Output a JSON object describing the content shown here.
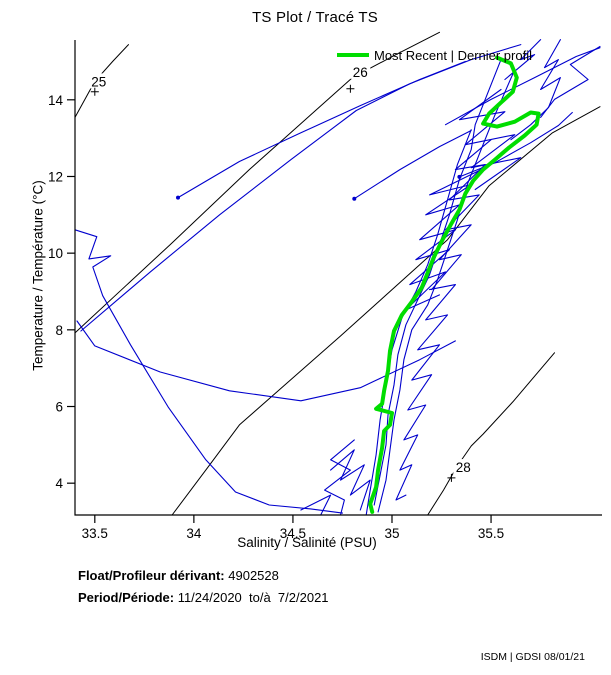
{
  "title": "TS Plot / Tracé TS",
  "legend": {
    "label": "Most Recent | Dernier profil"
  },
  "footer": {
    "float_label": "Float/Profileur dérivant:",
    "float_value": " 4902528",
    "period_label": "Period/Période:",
    "period_value": " 11/24/2020  to/à  7/2/2021"
  },
  "watermark": "ISDM | GDSI 08/01/21",
  "chart_data": {
    "type": "line",
    "title": "TS Plot / Tracé TS",
    "xlabel": "Salinity / Salinité (PSU)",
    "ylabel": "Temperature / Température (°C)",
    "xlim": [
      33.4,
      36.06
    ],
    "ylim": [
      3.17,
      15.56
    ],
    "x_ticks": [
      33.5,
      34,
      34.5,
      35,
      35.5
    ],
    "y_ticks": [
      4,
      6,
      8,
      10,
      12,
      14
    ],
    "grid": false,
    "legend_position": "top-right",
    "colors": {
      "profiles": "#0000cd",
      "most_recent": "#00dd00",
      "contours": "#000000",
      "axis": "#000000"
    },
    "density_contours": [
      {
        "label": "25",
        "label_pos": [
          33.52,
          14.48
        ],
        "marker_pos": [
          33.5,
          14.21
        ],
        "points": [
          [
            33.4,
            13.54
          ],
          [
            33.5,
            14.48
          ],
          [
            33.59,
            15.0
          ],
          [
            33.67,
            15.44
          ]
        ]
      },
      {
        "label": "26",
        "label_pos": [
          34.84,
          14.73
        ],
        "marker_pos": [
          34.79,
          14.29
        ],
        "points": [
          [
            33.4,
            7.92
          ],
          [
            33.88,
            10.22
          ],
          [
            34.28,
            12.18
          ],
          [
            34.59,
            13.61
          ],
          [
            34.8,
            14.58
          ],
          [
            35.02,
            15.18
          ],
          [
            35.24,
            15.76
          ]
        ]
      },
      {
        "label": "",
        "label_pos": null,
        "marker_pos": null,
        "points": [
          [
            33.89,
            3.17
          ],
          [
            34.06,
            4.34
          ],
          [
            34.23,
            5.52
          ],
          [
            34.74,
            7.84
          ],
          [
            35.28,
            10.35
          ],
          [
            35.49,
            11.76
          ],
          [
            35.81,
            13.14
          ],
          [
            36.05,
            13.82
          ]
        ]
      },
      {
        "label": "28",
        "label_pos": [
          35.36,
          4.42
        ],
        "marker_pos": [
          35.3,
          4.14
        ],
        "points": [
          [
            35.18,
            3.17
          ],
          [
            35.26,
            3.82
          ],
          [
            35.33,
            4.45
          ],
          [
            35.4,
            4.97
          ],
          [
            35.46,
            5.28
          ],
          [
            35.61,
            6.12
          ],
          [
            35.82,
            7.4
          ]
        ]
      }
    ],
    "profiles": [
      [
        [
          33.4,
          10.61
        ],
        [
          33.51,
          10.43
        ],
        [
          33.47,
          9.85
        ],
        [
          33.58,
          9.93
        ],
        [
          33.49,
          9.64
        ],
        [
          33.54,
          8.89
        ],
        [
          33.68,
          7.61
        ],
        [
          33.87,
          5.99
        ],
        [
          34.06,
          4.61
        ],
        [
          34.21,
          3.77
        ],
        [
          34.38,
          3.43
        ],
        [
          34.59,
          3.33
        ],
        [
          34.75,
          3.22
        ]
      ],
      [
        [
          33.43,
          7.97
        ],
        [
          33.78,
          9.51
        ],
        [
          34.13,
          11.0
        ],
        [
          34.49,
          12.44
        ],
        [
          34.82,
          13.72
        ],
        [
          35.09,
          14.42
        ],
        [
          35.4,
          15.05
        ],
        [
          35.65,
          15.44
        ]
      ],
      [
        [
          33.41,
          8.23
        ],
        [
          33.5,
          7.58
        ],
        [
          33.83,
          6.9
        ],
        [
          34.18,
          6.41
        ],
        [
          34.54,
          6.15
        ],
        [
          34.84,
          6.49
        ],
        [
          35.14,
          7.22
        ],
        [
          35.32,
          7.71
        ]
      ],
      [
        [
          33.92,
          11.45
        ],
        [
          34.23,
          12.39
        ],
        [
          34.54,
          13.14
        ],
        [
          34.84,
          13.85
        ],
        [
          35.14,
          14.53
        ],
        [
          35.37,
          15.0
        ]
      ],
      [
        [
          34.81,
          11.42
        ],
        [
          35.04,
          12.18
        ],
        [
          35.24,
          12.78
        ],
        [
          35.4,
          13.2
        ]
      ],
      [
        [
          35.34,
          11.99
        ],
        [
          35.52,
          12.36
        ],
        [
          35.7,
          12.88
        ],
        [
          35.84,
          13.33
        ],
        [
          35.91,
          13.67
        ]
      ],
      [
        [
          35.85,
          15.57
        ],
        [
          35.77,
          14.84
        ],
        [
          35.84,
          15.05
        ],
        [
          35.75,
          14.27
        ],
        [
          35.85,
          14.58
        ],
        [
          35.79,
          13.8
        ],
        [
          35.7,
          13.35
        ],
        [
          35.6,
          12.96
        ]
      ],
      [
        [
          36.05,
          15.39
        ],
        [
          35.9,
          14.92
        ],
        [
          35.99,
          14.53
        ],
        [
          35.82,
          14.01
        ],
        [
          35.75,
          13.54
        ]
      ],
      [
        [
          35.55,
          14.27
        ],
        [
          35.34,
          13.48
        ],
        [
          35.57,
          13.69
        ],
        [
          35.37,
          12.83
        ],
        [
          35.62,
          13.09
        ],
        [
          35.4,
          12.23
        ],
        [
          35.65,
          12.49
        ],
        [
          35.42,
          11.66
        ]
      ],
      [
        [
          35.27,
          13.35
        ],
        [
          35.5,
          14.01
        ],
        [
          35.72,
          14.58
        ],
        [
          35.93,
          15.13
        ],
        [
          36.05,
          15.36
        ]
      ],
      [
        [
          35.45,
          12.18
        ],
        [
          35.19,
          11.52
        ],
        [
          35.4,
          11.79
        ],
        [
          35.17,
          11.0
        ],
        [
          35.34,
          11.26
        ],
        [
          35.14,
          10.35
        ],
        [
          35.32,
          10.61
        ]
      ],
      [
        [
          35.32,
          10.61
        ],
        [
          35.12,
          9.83
        ],
        [
          35.29,
          10.09
        ],
        [
          35.09,
          9.18
        ],
        [
          35.27,
          9.51
        ],
        [
          35.07,
          8.52
        ],
        [
          35.24,
          8.91
        ]
      ],
      [
        [
          34.69,
          4.34
        ],
        [
          34.81,
          4.87
        ],
        [
          34.74,
          4.08
        ],
        [
          34.86,
          4.48
        ],
        [
          34.79,
          3.69
        ],
        [
          34.89,
          4.08
        ],
        [
          34.84,
          3.3
        ]
      ],
      [
        [
          34.54,
          3.3
        ],
        [
          34.69,
          3.69
        ],
        [
          34.64,
          3.17
        ]
      ],
      [
        [
          35.55,
          15.05
        ],
        [
          35.42,
          13.35
        ],
        [
          35.4,
          12.7
        ],
        [
          35.34,
          11.92
        ],
        [
          35.29,
          11.0
        ],
        [
          35.24,
          10.22
        ],
        [
          35.19,
          9.44
        ],
        [
          35.13,
          8.78
        ],
        [
          35.07,
          8.13
        ],
        [
          35.03,
          7.35
        ],
        [
          35.01,
          6.56
        ],
        [
          34.98,
          5.78
        ],
        [
          34.97,
          5.0
        ],
        [
          34.94,
          4.21
        ],
        [
          34.91,
          3.43
        ]
      ],
      [
        [
          35.62,
          14.79
        ],
        [
          35.52,
          13.61
        ],
        [
          35.45,
          12.7
        ],
        [
          35.38,
          11.79
        ],
        [
          35.33,
          10.87
        ],
        [
          35.28,
          10.09
        ],
        [
          35.23,
          9.31
        ],
        [
          35.18,
          8.65
        ],
        [
          35.1,
          8.0
        ],
        [
          35.06,
          7.22
        ],
        [
          35.04,
          6.43
        ],
        [
          35.01,
          5.65
        ],
        [
          34.99,
          4.87
        ],
        [
          34.97,
          4.08
        ],
        [
          34.93,
          3.25
        ]
      ],
      [
        [
          35.4,
          13.22
        ],
        [
          35.33,
          12.31
        ],
        [
          35.28,
          11.39
        ],
        [
          35.23,
          10.48
        ],
        [
          35.18,
          9.7
        ],
        [
          35.12,
          8.99
        ],
        [
          35.05,
          8.31
        ],
        [
          35.0,
          7.48
        ],
        [
          34.97,
          6.56
        ],
        [
          34.94,
          5.65
        ],
        [
          34.92,
          4.74
        ],
        [
          34.89,
          3.82
        ],
        [
          34.87,
          3.17
        ]
      ],
      [
        [
          35.5,
          12.96
        ],
        [
          35.32,
          12.18
        ],
        [
          35.47,
          12.31
        ],
        [
          35.29,
          11.39
        ],
        [
          35.44,
          11.52
        ],
        [
          35.27,
          10.61
        ],
        [
          35.4,
          10.74
        ],
        [
          35.24,
          9.83
        ],
        [
          35.35,
          9.96
        ],
        [
          35.2,
          9.05
        ]
      ],
      [
        [
          35.19,
          9.05
        ],
        [
          35.32,
          9.18
        ],
        [
          35.17,
          8.26
        ],
        [
          35.28,
          8.39
        ],
        [
          35.13,
          7.48
        ],
        [
          35.24,
          7.61
        ],
        [
          35.1,
          6.69
        ],
        [
          35.2,
          6.83
        ],
        [
          35.08,
          5.91
        ],
        [
          35.17,
          6.04
        ],
        [
          35.06,
          5.13
        ],
        [
          35.13,
          5.26
        ],
        [
          35.04,
          4.34
        ],
        [
          35.1,
          4.48
        ],
        [
          35.02,
          3.56
        ],
        [
          35.07,
          3.69
        ]
      ],
      [
        [
          35.75,
          15.57
        ],
        [
          35.65,
          15.05
        ],
        [
          35.72,
          15.18
        ],
        [
          35.57,
          14.53
        ]
      ],
      [
        [
          34.81,
          5.13
        ],
        [
          34.69,
          4.61
        ],
        [
          34.79,
          4.34
        ],
        [
          34.66,
          3.82
        ],
        [
          34.76,
          3.56
        ],
        [
          34.74,
          3.17
        ]
      ]
    ],
    "profile_endpoint_dots": [
      [
        33.92,
        11.45
      ],
      [
        34.81,
        11.42
      ],
      [
        35.34,
        11.99
      ]
    ],
    "most_recent_profile": [
      [
        35.53,
        15.1
      ],
      [
        35.6,
        14.95
      ],
      [
        35.63,
        14.58
      ],
      [
        35.61,
        14.21
      ],
      [
        35.55,
        13.93
      ],
      [
        35.49,
        13.64
      ],
      [
        35.46,
        13.38
      ],
      [
        35.53,
        13.3
      ],
      [
        35.62,
        13.43
      ],
      [
        35.7,
        13.67
      ],
      [
        35.74,
        13.64
      ],
      [
        35.73,
        13.35
      ],
      [
        35.67,
        13.07
      ],
      [
        35.59,
        12.75
      ],
      [
        35.52,
        12.44
      ],
      [
        35.46,
        12.18
      ],
      [
        35.41,
        11.89
      ],
      [
        35.37,
        11.55
      ],
      [
        35.34,
        11.13
      ],
      [
        35.3,
        10.77
      ],
      [
        35.25,
        10.3
      ],
      [
        35.21,
        9.88
      ],
      [
        35.18,
        9.49
      ],
      [
        35.15,
        9.1
      ],
      [
        35.1,
        8.73
      ],
      [
        35.05,
        8.39
      ],
      [
        35.01,
        7.97
      ],
      [
        34.99,
        7.45
      ],
      [
        34.98,
        6.93
      ],
      [
        34.96,
        6.41
      ],
      [
        34.95,
        6.07
      ],
      [
        34.92,
        5.94
      ],
      [
        35.0,
        5.83
      ],
      [
        34.99,
        5.52
      ],
      [
        34.96,
        5.36
      ],
      [
        34.95,
        4.92
      ],
      [
        34.93,
        4.35
      ],
      [
        34.92,
        3.9
      ],
      [
        34.89,
        3.46
      ],
      [
        34.9,
        3.25
      ]
    ]
  }
}
